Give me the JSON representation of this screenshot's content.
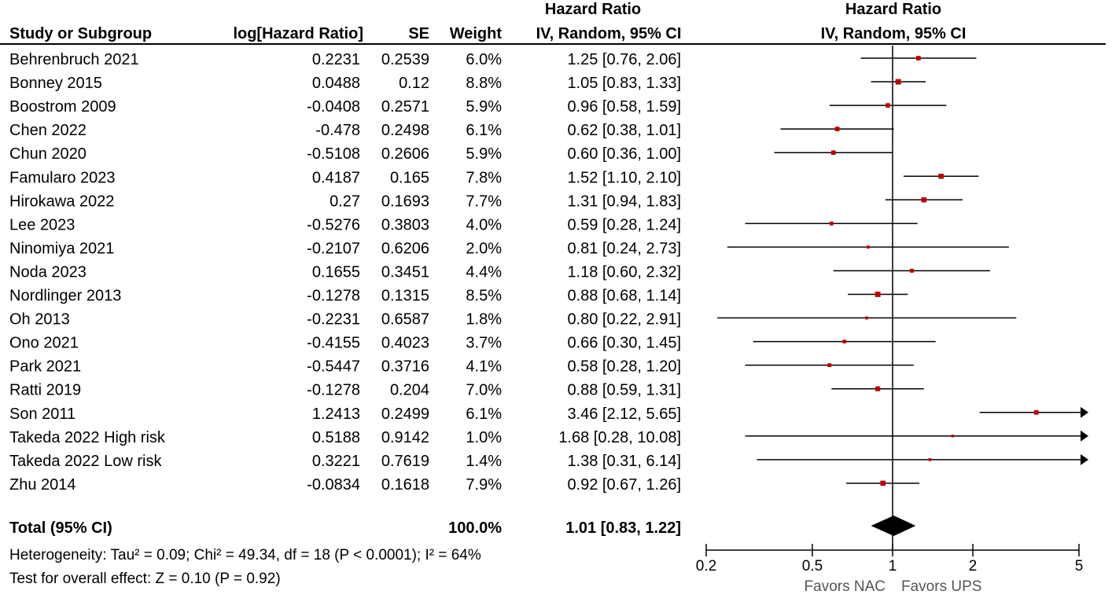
{
  "header": {
    "study_col": "Study or Subgroup",
    "loghr_col": "log[Hazard Ratio]",
    "se_col": "SE",
    "weight_col": "Weight",
    "hr_col_line1": "Hazard Ratio",
    "hr_col_line2": "IV, Random, 95% CI",
    "plot_col_line1": "Hazard Ratio",
    "plot_col_line2": "IV, Random, 95% CI"
  },
  "studies": [
    {
      "name": "Behrenbruch 2021",
      "loghr": "0.2231",
      "se": "0.2539",
      "weight": "6.0%",
      "ci_text": "1.25 [0.76, 2.06]"
    },
    {
      "name": "Bonney 2015",
      "loghr": "0.0488",
      "se": "0.12",
      "weight": "8.8%",
      "ci_text": "1.05 [0.83, 1.33]"
    },
    {
      "name": "Boostrom 2009",
      "loghr": "-0.0408",
      "se": "0.2571",
      "weight": "5.9%",
      "ci_text": "0.96 [0.58, 1.59]"
    },
    {
      "name": "Chen 2022",
      "loghr": "-0.478",
      "se": "0.2498",
      "weight": "6.1%",
      "ci_text": "0.62 [0.38, 1.01]"
    },
    {
      "name": "Chun 2020",
      "loghr": "-0.5108",
      "se": "0.2606",
      "weight": "5.9%",
      "ci_text": "0.60 [0.36, 1.00]"
    },
    {
      "name": "Famularo 2023",
      "loghr": "0.4187",
      "se": "0.165",
      "weight": "7.8%",
      "ci_text": "1.52 [1.10, 2.10]"
    },
    {
      "name": "Hirokawa 2022",
      "loghr": "0.27",
      "se": "0.1693",
      "weight": "7.7%",
      "ci_text": "1.31 [0.94, 1.83]"
    },
    {
      "name": "Lee 2023",
      "loghr": "-0.5276",
      "se": "0.3803",
      "weight": "4.0%",
      "ci_text": "0.59 [0.28, 1.24]"
    },
    {
      "name": "Ninomiya 2021",
      "loghr": "-0.2107",
      "se": "0.6206",
      "weight": "2.0%",
      "ci_text": "0.81 [0.24, 2.73]"
    },
    {
      "name": "Noda 2023",
      "loghr": "0.1655",
      "se": "0.3451",
      "weight": "4.4%",
      "ci_text": "1.18 [0.60, 2.32]"
    },
    {
      "name": "Nordlinger 2013",
      "loghr": "-0.1278",
      "se": "0.1315",
      "weight": "8.5%",
      "ci_text": "0.88 [0.68, 1.14]"
    },
    {
      "name": "Oh 2013",
      "loghr": "-0.2231",
      "se": "0.6587",
      "weight": "1.8%",
      "ci_text": "0.80 [0.22, 2.91]"
    },
    {
      "name": "Ono 2021",
      "loghr": "-0.4155",
      "se": "0.4023",
      "weight": "3.7%",
      "ci_text": "0.66 [0.30, 1.45]"
    },
    {
      "name": "Park 2021",
      "loghr": "-0.5447",
      "se": "0.3716",
      "weight": "4.1%",
      "ci_text": "0.58 [0.28, 1.20]"
    },
    {
      "name": "Ratti 2019",
      "loghr": "-0.1278",
      "se": "0.204",
      "weight": "7.0%",
      "ci_text": "0.88 [0.59, 1.31]"
    },
    {
      "name": "Son 2011",
      "loghr": "1.2413",
      "se": "0.2499",
      "weight": "6.1%",
      "ci_text": "3.46 [2.12, 5.65]"
    },
    {
      "name": "Takeda 2022 High risk",
      "loghr": "0.5188",
      "se": "0.9142",
      "weight": "1.0%",
      "ci_text": "1.68 [0.28, 10.08]"
    },
    {
      "name": "Takeda 2022 Low risk",
      "loghr": "0.3221",
      "se": "0.7619",
      "weight": "1.4%",
      "ci_text": "1.38 [0.31, 6.14]"
    },
    {
      "name": "Zhu 2014",
      "loghr": "-0.0834",
      "se": "0.1618",
      "weight": "7.9%",
      "ci_text": "0.92 [0.67, 1.26]"
    }
  ],
  "total": {
    "label": "Total (95% CI)",
    "weight": "100.0%",
    "ci_text": "1.01 [0.83, 1.22]"
  },
  "footer": {
    "heterogeneity": "Heterogeneity: Tau² = 0.09; Chi² = 49.34, df = 18 (P < 0.0001); I² = 64%",
    "overall": "Test for overall effect: Z = 0.10 (P = 0.92)"
  },
  "axis": {
    "ticks": [
      "0.2",
      "0.5",
      "1",
      "2",
      "5"
    ],
    "favors_left": "Favors NAC",
    "favors_right": "Favors UPS"
  },
  "colors": {
    "marker": "#c00000",
    "line": "#000000",
    "text": "#111111"
  },
  "chart_data": {
    "type": "forest",
    "scale": "log",
    "xlim": [
      0.2,
      5
    ],
    "reference_line": 1,
    "studies": [
      {
        "name": "Behrenbruch 2021",
        "hr": 1.25,
        "lo": 0.76,
        "hi": 2.06,
        "weight": 6.0
      },
      {
        "name": "Bonney 2015",
        "hr": 1.05,
        "lo": 0.83,
        "hi": 1.33,
        "weight": 8.8
      },
      {
        "name": "Boostrom 2009",
        "hr": 0.96,
        "lo": 0.58,
        "hi": 1.59,
        "weight": 5.9
      },
      {
        "name": "Chen 2022",
        "hr": 0.62,
        "lo": 0.38,
        "hi": 1.01,
        "weight": 6.1
      },
      {
        "name": "Chun 2020",
        "hr": 0.6,
        "lo": 0.36,
        "hi": 1.0,
        "weight": 5.9
      },
      {
        "name": "Famularo 2023",
        "hr": 1.52,
        "lo": 1.1,
        "hi": 2.1,
        "weight": 7.8
      },
      {
        "name": "Hirokawa 2022",
        "hr": 1.31,
        "lo": 0.94,
        "hi": 1.83,
        "weight": 7.7
      },
      {
        "name": "Lee 2023",
        "hr": 0.59,
        "lo": 0.28,
        "hi": 1.24,
        "weight": 4.0
      },
      {
        "name": "Ninomiya 2021",
        "hr": 0.81,
        "lo": 0.24,
        "hi": 2.73,
        "weight": 2.0
      },
      {
        "name": "Noda 2023",
        "hr": 1.18,
        "lo": 0.6,
        "hi": 2.32,
        "weight": 4.4
      },
      {
        "name": "Nordlinger 2013",
        "hr": 0.88,
        "lo": 0.68,
        "hi": 1.14,
        "weight": 8.5
      },
      {
        "name": "Oh 2013",
        "hr": 0.8,
        "lo": 0.22,
        "hi": 2.91,
        "weight": 1.8
      },
      {
        "name": "Ono 2021",
        "hr": 0.66,
        "lo": 0.3,
        "hi": 1.45,
        "weight": 3.7
      },
      {
        "name": "Park 2021",
        "hr": 0.58,
        "lo": 0.28,
        "hi": 1.2,
        "weight": 4.1
      },
      {
        "name": "Ratti 2019",
        "hr": 0.88,
        "lo": 0.59,
        "hi": 1.31,
        "weight": 7.0
      },
      {
        "name": "Son 2011",
        "hr": 3.46,
        "lo": 2.12,
        "hi": 5.65,
        "weight": 6.1
      },
      {
        "name": "Takeda 2022 High risk",
        "hr": 1.68,
        "lo": 0.28,
        "hi": 10.08,
        "weight": 1.0
      },
      {
        "name": "Takeda 2022 Low risk",
        "hr": 1.38,
        "lo": 0.31,
        "hi": 6.14,
        "weight": 1.4
      },
      {
        "name": "Zhu 2014",
        "hr": 0.92,
        "lo": 0.67,
        "hi": 1.26,
        "weight": 7.9
      }
    ],
    "pooled": {
      "hr": 1.01,
      "lo": 0.83,
      "hi": 1.22
    },
    "ticks": [
      0.2,
      0.5,
      1,
      2,
      5
    ]
  }
}
